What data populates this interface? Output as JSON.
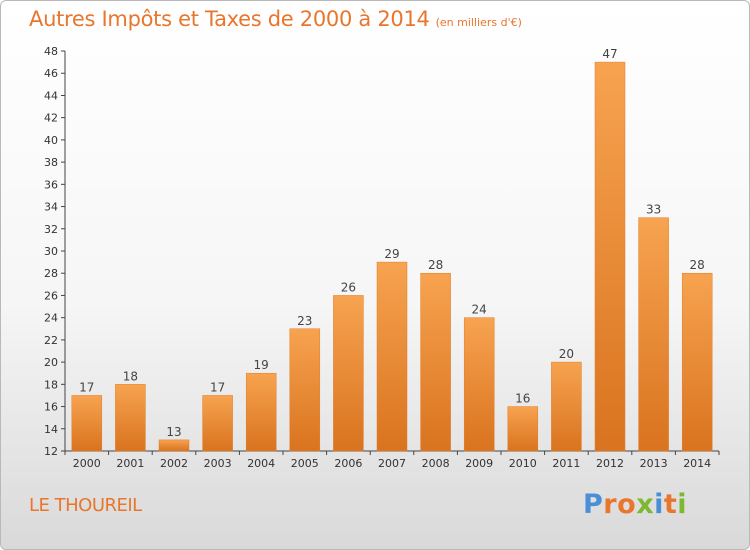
{
  "chart_data": {
    "type": "bar",
    "title": "Autres Impôts et Taxes de 2000 à 2014",
    "subtitle": "(en milliers d'€)",
    "categories": [
      "2000",
      "2001",
      "2002",
      "2003",
      "2004",
      "2005",
      "2006",
      "2007",
      "2008",
      "2009",
      "2010",
      "2011",
      "2012",
      "2013",
      "2014"
    ],
    "values": [
      17,
      18,
      13,
      17,
      19,
      23,
      26,
      29,
      28,
      24,
      16,
      20,
      47,
      33,
      28
    ],
    "ylim": [
      12,
      48
    ],
    "yticks": [
      12,
      14,
      16,
      18,
      20,
      22,
      24,
      26,
      28,
      30,
      32,
      34,
      36,
      38,
      40,
      42,
      44,
      46,
      48
    ],
    "grid": false,
    "bar_color": "#f0913a"
  },
  "footer": {
    "location": "LE THOUREIL",
    "logo": "Proxiti"
  },
  "colors": {
    "accent": "#e8762d",
    "logo_letters": [
      "#4a8fd6",
      "#e8762d",
      "#e8762d",
      "#7cb832",
      "#4a8fd6",
      "#e8762d",
      "#7cb832"
    ]
  }
}
